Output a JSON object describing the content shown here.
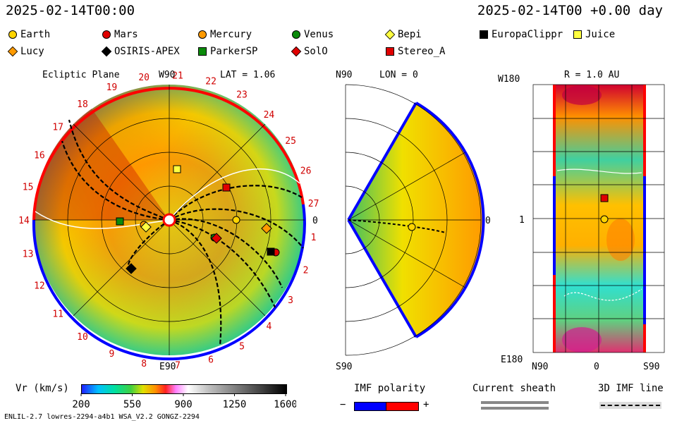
{
  "header": {
    "left_time": "2025-02-14T00:00",
    "right_time": "2025-02-14T00 +0.00 day"
  },
  "legend": [
    {
      "name": "Earth",
      "color": "#ffd400",
      "shape": "circle"
    },
    {
      "name": "Mars",
      "color": "#e00000",
      "shape": "circle"
    },
    {
      "name": "Mercury",
      "color": "#ff9a00",
      "shape": "circle"
    },
    {
      "name": "Venus",
      "color": "#0a8a0a",
      "shape": "circle"
    },
    {
      "name": "Bepi",
      "color": "#ffff40",
      "shape": "diamond"
    },
    {
      "name": "EuropaClippr",
      "color": "#000000",
      "shape": "square"
    },
    {
      "name": "Juice",
      "color": "#ffff40",
      "shape": "square"
    },
    {
      "name": "Lucy",
      "color": "#ff9a00",
      "shape": "diamond"
    },
    {
      "name": "OSIRIS-APEX",
      "color": "#000000",
      "shape": "diamond"
    },
    {
      "name": "ParkerSP",
      "color": "#0a8a0a",
      "shape": "square"
    },
    {
      "name": "SolO",
      "color": "#e00000",
      "shape": "diamond"
    },
    {
      "name": "Stereo_A",
      "color": "#e00000",
      "shape": "square"
    }
  ],
  "panels": {
    "ecliptic": {
      "title": "Ecliptic Plane",
      "top_label": "W90",
      "bottom_label": "E90",
      "right_label": "0",
      "lat_label": "LAT = 1.06",
      "carrington_ticks": [
        "20",
        "21",
        "22",
        "23",
        "24",
        "25",
        "26",
        "27",
        "1",
        "2",
        "3",
        "4",
        "5",
        "6",
        "7",
        "8",
        "9",
        "10",
        "11",
        "12",
        "13",
        "14",
        "15",
        "16",
        "17",
        "18",
        "19"
      ]
    },
    "meridional": {
      "top_label": "N90",
      "bottom_label": "S90",
      "lon_label": "LON = 0",
      "right_label": "0"
    },
    "synoptic": {
      "title": "R = 1.0 AU",
      "top_left": "W180",
      "bottom_left": "E180",
      "mid_left": "1",
      "x_left": "N90",
      "x_mid": "0",
      "x_right": "S90"
    }
  },
  "chart_data": {
    "type": "heatmap",
    "colorbar": {
      "label": "Vr (km/s)",
      "min": 200,
      "max": 1600,
      "ticks": [
        200,
        550,
        900,
        1250,
        1600
      ],
      "tick_labels": [
        "200",
        "550",
        "900",
        "1250",
        "1600"
      ]
    },
    "imf_polarity": {
      "title": "IMF polarity",
      "neg": "−",
      "pos": "+",
      "neg_color": "#0000ff",
      "pos_color": "#ff0000"
    },
    "current_sheath": {
      "title": "Current sheath"
    },
    "imf_line": {
      "title": "3D IMF line"
    }
  },
  "footer": {
    "model_info": "ENLIL-2.7 lowres-2294-a4b1 WSA_V2.2 GONGZ-2294"
  }
}
